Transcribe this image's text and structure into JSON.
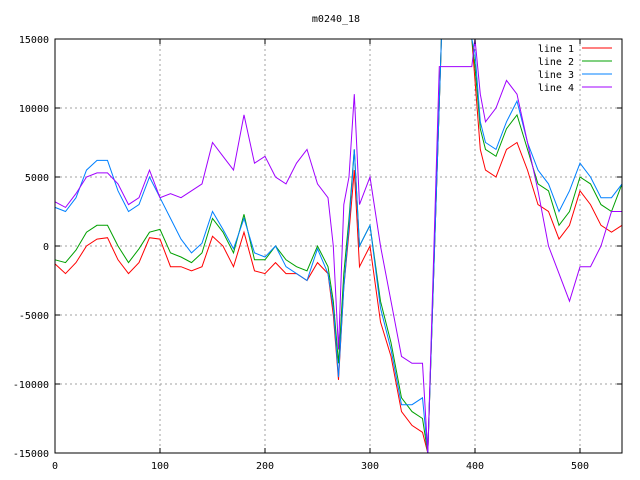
{
  "chart_data": {
    "type": "line",
    "title": "m0240_18",
    "xlabel": "",
    "ylabel": "",
    "xlim": [
      0,
      540
    ],
    "ylim": [
      -15000,
      15000
    ],
    "xticks": [
      0,
      100,
      200,
      300,
      400,
      500
    ],
    "yticks": [
      -15000,
      -10000,
      -5000,
      0,
      5000,
      10000,
      15000
    ],
    "grid": true,
    "legend_position": "top-right",
    "series": [
      {
        "name": "line 1",
        "color": "#ff0000",
        "points": [
          [
            0,
            -1300
          ],
          [
            10,
            -2000
          ],
          [
            20,
            -1200
          ],
          [
            30,
            0
          ],
          [
            40,
            500
          ],
          [
            50,
            600
          ],
          [
            60,
            -1000
          ],
          [
            70,
            -2000
          ],
          [
            80,
            -1200
          ],
          [
            90,
            600
          ],
          [
            100,
            500
          ],
          [
            110,
            -1500
          ],
          [
            120,
            -1500
          ],
          [
            130,
            -1800
          ],
          [
            140,
            -1500
          ],
          [
            150,
            700
          ],
          [
            160,
            0
          ],
          [
            170,
            -1500
          ],
          [
            180,
            1000
          ],
          [
            190,
            -1800
          ],
          [
            200,
            -2000
          ],
          [
            210,
            -1200
          ],
          [
            220,
            -2000
          ],
          [
            230,
            -2000
          ],
          [
            240,
            -2500
          ],
          [
            250,
            -1200
          ],
          [
            260,
            -2000
          ],
          [
            265,
            -5000
          ],
          [
            270,
            -9700
          ],
          [
            275,
            -3000
          ],
          [
            280,
            1000
          ],
          [
            285,
            5500
          ],
          [
            290,
            -1500
          ],
          [
            300,
            0
          ],
          [
            310,
            -5500
          ],
          [
            320,
            -8000
          ],
          [
            330,
            -12000
          ],
          [
            340,
            -13000
          ],
          [
            350,
            -13500
          ],
          [
            355,
            -15000
          ],
          [
            368,
            15000
          ],
          [
            372,
            15000
          ],
          [
            380,
            15000
          ],
          [
            390,
            15000
          ],
          [
            397,
            15000
          ],
          [
            400,
            12000
          ],
          [
            405,
            7000
          ],
          [
            410,
            5500
          ],
          [
            420,
            5000
          ],
          [
            430,
            7000
          ],
          [
            440,
            7500
          ],
          [
            450,
            5500
          ],
          [
            460,
            3000
          ],
          [
            470,
            2500
          ],
          [
            480,
            500
          ],
          [
            490,
            1500
          ],
          [
            500,
            4000
          ],
          [
            510,
            3000
          ],
          [
            520,
            1500
          ],
          [
            530,
            1000
          ],
          [
            540,
            1500
          ]
        ]
      },
      {
        "name": "line 2",
        "color": "#00a000",
        "points": [
          [
            0,
            -1000
          ],
          [
            10,
            -1200
          ],
          [
            20,
            -300
          ],
          [
            30,
            1000
          ],
          [
            40,
            1500
          ],
          [
            50,
            1500
          ],
          [
            60,
            0
          ],
          [
            70,
            -1200
          ],
          [
            80,
            -200
          ],
          [
            90,
            1000
          ],
          [
            100,
            1200
          ],
          [
            110,
            -500
          ],
          [
            120,
            -800
          ],
          [
            130,
            -1200
          ],
          [
            140,
            -500
          ],
          [
            150,
            2000
          ],
          [
            160,
            1000
          ],
          [
            170,
            -500
          ],
          [
            180,
            2300
          ],
          [
            190,
            -1000
          ],
          [
            200,
            -1000
          ],
          [
            210,
            0
          ],
          [
            220,
            -1000
          ],
          [
            230,
            -1500
          ],
          [
            240,
            -1800
          ],
          [
            250,
            0
          ],
          [
            260,
            -1500
          ],
          [
            265,
            -4000
          ],
          [
            270,
            -8500
          ],
          [
            275,
            -2000
          ],
          [
            280,
            2000
          ],
          [
            285,
            7000
          ],
          [
            290,
            0
          ],
          [
            300,
            1500
          ],
          [
            310,
            -4000
          ],
          [
            320,
            -7000
          ],
          [
            330,
            -11000
          ],
          [
            340,
            -12000
          ],
          [
            350,
            -12500
          ],
          [
            355,
            -15000
          ],
          [
            368,
            15000
          ],
          [
            372,
            15000
          ],
          [
            380,
            15000
          ],
          [
            390,
            15000
          ],
          [
            397,
            15000
          ],
          [
            400,
            13000
          ],
          [
            405,
            8500
          ],
          [
            410,
            7000
          ],
          [
            420,
            6500
          ],
          [
            430,
            8500
          ],
          [
            440,
            9500
          ],
          [
            450,
            7000
          ],
          [
            460,
            4500
          ],
          [
            470,
            4000
          ],
          [
            480,
            1500
          ],
          [
            490,
            2500
          ],
          [
            500,
            5000
          ],
          [
            510,
            4500
          ],
          [
            520,
            3000
          ],
          [
            530,
            2500
          ],
          [
            540,
            4500
          ]
        ]
      },
      {
        "name": "line 3",
        "color": "#0080ff",
        "points": [
          [
            0,
            2800
          ],
          [
            10,
            2500
          ],
          [
            20,
            3500
          ],
          [
            30,
            5500
          ],
          [
            40,
            6200
          ],
          [
            50,
            6200
          ],
          [
            60,
            4000
          ],
          [
            70,
            2500
          ],
          [
            80,
            3000
          ],
          [
            90,
            5000
          ],
          [
            100,
            3500
          ],
          [
            110,
            2000
          ],
          [
            120,
            500
          ],
          [
            130,
            -500
          ],
          [
            140,
            200
          ],
          [
            150,
            2500
          ],
          [
            160,
            1200
          ],
          [
            170,
            -200
          ],
          [
            180,
            2000
          ],
          [
            190,
            -500
          ],
          [
            200,
            -800
          ],
          [
            210,
            0
          ],
          [
            220,
            -1500
          ],
          [
            230,
            -2000
          ],
          [
            240,
            -2500
          ],
          [
            250,
            -200
          ],
          [
            260,
            -2000
          ],
          [
            265,
            -4500
          ],
          [
            270,
            -9500
          ],
          [
            275,
            -3000
          ],
          [
            280,
            1500
          ],
          [
            285,
            7000
          ],
          [
            290,
            0
          ],
          [
            300,
            1500
          ],
          [
            310,
            -4500
          ],
          [
            320,
            -7500
          ],
          [
            330,
            -11500
          ],
          [
            340,
            -11500
          ],
          [
            350,
            -11000
          ],
          [
            355,
            -15000
          ],
          [
            368,
            15000
          ],
          [
            372,
            15000
          ],
          [
            380,
            15000
          ],
          [
            390,
            15000
          ],
          [
            397,
            15000
          ],
          [
            400,
            14000
          ],
          [
            405,
            9000
          ],
          [
            410,
            7500
          ],
          [
            420,
            7000
          ],
          [
            430,
            9000
          ],
          [
            440,
            10500
          ],
          [
            450,
            7500
          ],
          [
            460,
            5500
          ],
          [
            470,
            4500
          ],
          [
            480,
            2500
          ],
          [
            490,
            4000
          ],
          [
            500,
            6000
          ],
          [
            510,
            5000
          ],
          [
            520,
            3500
          ],
          [
            530,
            3500
          ],
          [
            540,
            4500
          ]
        ]
      },
      {
        "name": "line 4",
        "color": "#a000ff",
        "points": [
          [
            0,
            3200
          ],
          [
            10,
            2800
          ],
          [
            20,
            3800
          ],
          [
            30,
            5000
          ],
          [
            40,
            5300
          ],
          [
            50,
            5300
          ],
          [
            60,
            4500
          ],
          [
            70,
            3000
          ],
          [
            80,
            3500
          ],
          [
            90,
            5500
          ],
          [
            100,
            3500
          ],
          [
            110,
            3800
          ],
          [
            120,
            3500
          ],
          [
            130,
            4000
          ],
          [
            140,
            4500
          ],
          [
            150,
            7500
          ],
          [
            160,
            6500
          ],
          [
            170,
            5500
          ],
          [
            180,
            9500
          ],
          [
            190,
            6000
          ],
          [
            200,
            6500
          ],
          [
            210,
            5000
          ],
          [
            220,
            4500
          ],
          [
            230,
            6000
          ],
          [
            240,
            7000
          ],
          [
            250,
            4500
          ],
          [
            260,
            3500
          ],
          [
            265,
            0
          ],
          [
            270,
            -7500
          ],
          [
            275,
            3000
          ],
          [
            280,
            5000
          ],
          [
            285,
            11000
          ],
          [
            290,
            3000
          ],
          [
            300,
            5000
          ],
          [
            310,
            0
          ],
          [
            320,
            -4000
          ],
          [
            330,
            -8000
          ],
          [
            340,
            -8500
          ],
          [
            350,
            -8500
          ],
          [
            355,
            -15000
          ],
          [
            366,
            13000
          ],
          [
            372,
            13000
          ],
          [
            380,
            13000
          ],
          [
            390,
            13000
          ],
          [
            397,
            13000
          ],
          [
            400,
            15000
          ],
          [
            405,
            11000
          ],
          [
            410,
            9000
          ],
          [
            420,
            10000
          ],
          [
            430,
            12000
          ],
          [
            440,
            11000
          ],
          [
            450,
            7500
          ],
          [
            460,
            4000
          ],
          [
            470,
            0
          ],
          [
            480,
            -2000
          ],
          [
            490,
            -4000
          ],
          [
            500,
            -1500
          ],
          [
            510,
            -1500
          ],
          [
            520,
            0
          ],
          [
            530,
            2500
          ],
          [
            540,
            2500
          ]
        ]
      }
    ]
  }
}
